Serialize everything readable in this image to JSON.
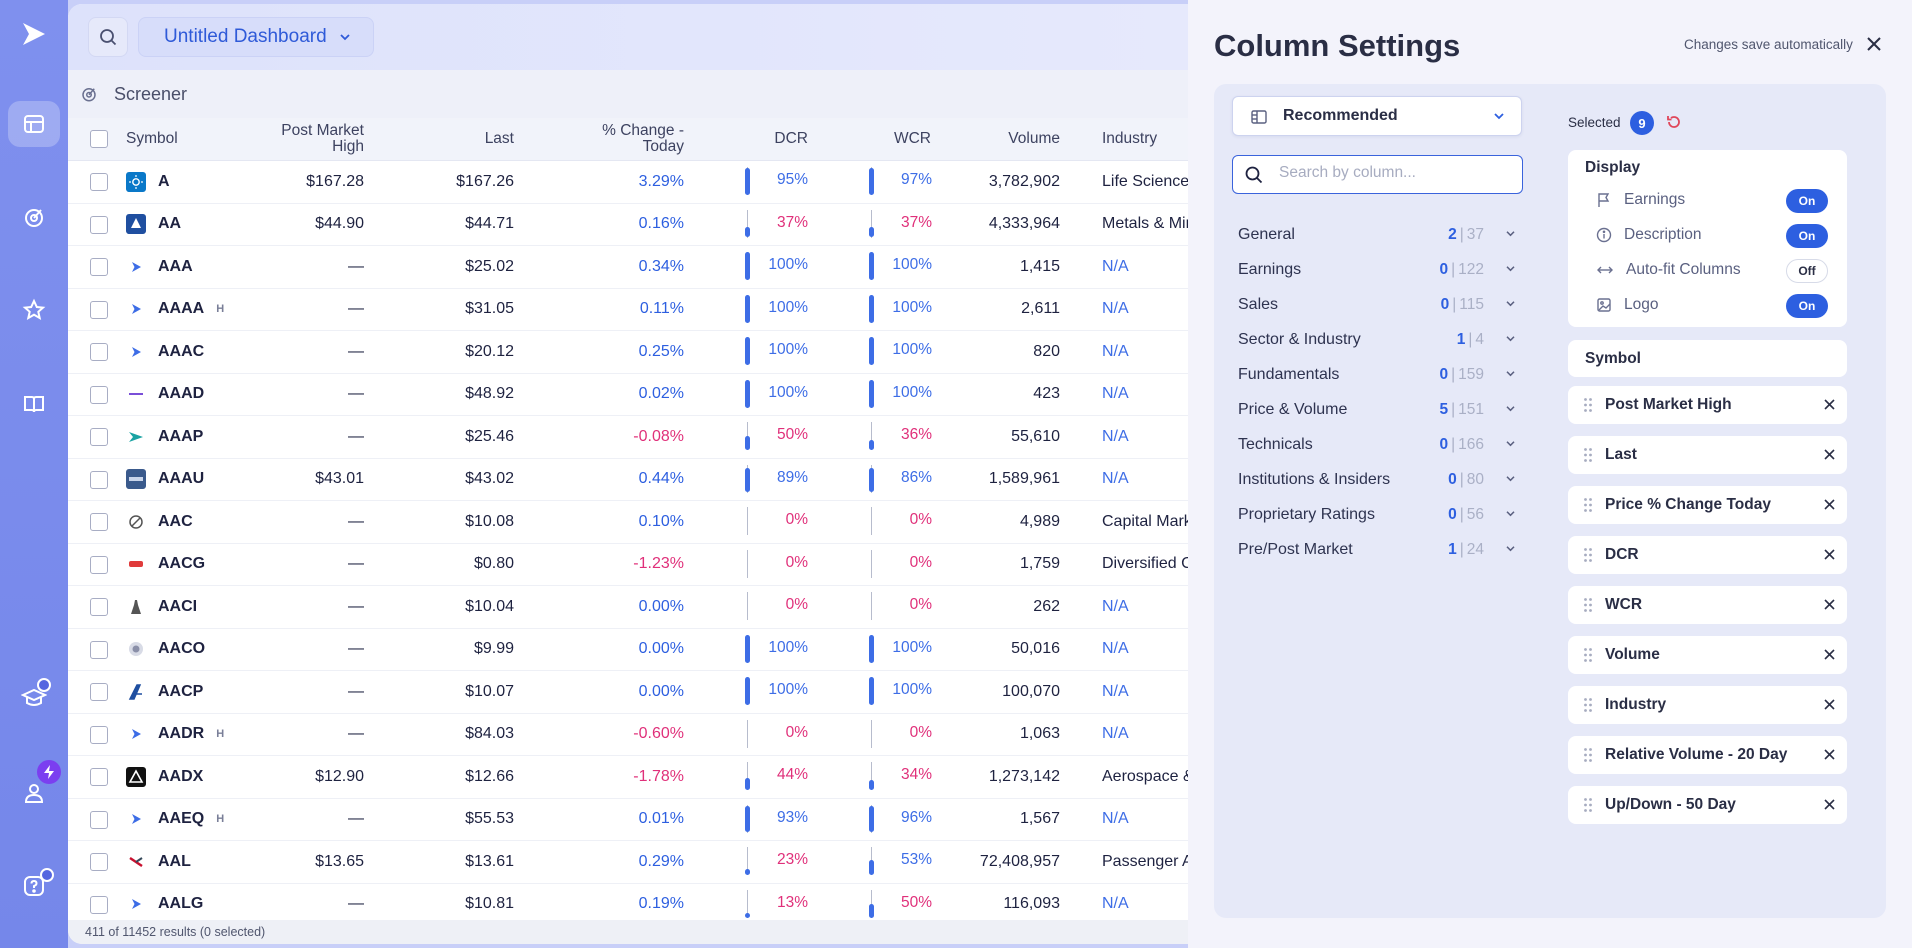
{
  "app": {
    "title": "Untitled Dashboard",
    "section": "Screener",
    "footer": "411 of 11452 results (0 selected)"
  },
  "colors": {
    "accent": "#2d5fe0",
    "positive": "#2d5fe0",
    "negative": "#e0307a",
    "rail": "#7f90ee"
  },
  "rail_icons": [
    "logo-icon",
    "dashboard-icon",
    "screener-icon",
    "watchlist-star-icon",
    "book-icon",
    "academy-cap-icon",
    "account-user-icon",
    "help-icon"
  ],
  "table": {
    "headers": {
      "symbol": "Symbol",
      "pmh_line1": "Post Market",
      "pmh_line2": "High",
      "last": "Last",
      "pct_line1": "% Change -",
      "pct_line2": "Today",
      "dcr": "DCR",
      "wcr": "WCR",
      "volume": "Volume",
      "industry": "Industry"
    },
    "rows": [
      {
        "logo": "sun",
        "sym": "A",
        "h": "",
        "pmh": "$167.28",
        "last": "$167.26",
        "pct": "3.29%",
        "dir": "pos",
        "dcr": "95%",
        "dcr_v": 95,
        "dcr_dir": "pos",
        "wcr": "97%",
        "wcr_v": 97,
        "wcr_dir": "pos",
        "vol": "3,782,902",
        "ind": "Life Sciences..."
      },
      {
        "logo": "alcoa",
        "sym": "AA",
        "h": "",
        "pmh": "$44.90",
        "last": "$44.71",
        "pct": "0.16%",
        "dir": "pos",
        "dcr": "37%",
        "dcr_v": 37,
        "dcr_dir": "neg",
        "wcr": "37%",
        "wcr_v": 37,
        "wcr_dir": "neg",
        "vol": "4,333,964",
        "ind": "Metals & Mini..."
      },
      {
        "logo": "play",
        "sym": "AAA",
        "h": "",
        "pmh": "—",
        "last": "$25.02",
        "pct": "0.34%",
        "dir": "pos",
        "dcr": "100%",
        "dcr_v": 100,
        "dcr_dir": "pos",
        "wcr": "100%",
        "wcr_v": 100,
        "wcr_dir": "pos",
        "vol": "1,415",
        "ind": "N/A"
      },
      {
        "logo": "play",
        "sym": "AAAA",
        "h": "H",
        "pmh": "—",
        "last": "$31.05",
        "pct": "0.11%",
        "dir": "pos",
        "dcr": "100%",
        "dcr_v": 100,
        "dcr_dir": "pos",
        "wcr": "100%",
        "wcr_v": 100,
        "wcr_dir": "pos",
        "vol": "2,611",
        "ind": "N/A"
      },
      {
        "logo": "play",
        "sym": "AAAC",
        "h": "",
        "pmh": "—",
        "last": "$20.12",
        "pct": "0.25%",
        "dir": "pos",
        "dcr": "100%",
        "dcr_v": 100,
        "dcr_dir": "pos",
        "wcr": "100%",
        "wcr_v": 100,
        "wcr_dir": "pos",
        "vol": "820",
        "ind": "N/A"
      },
      {
        "logo": "dash",
        "sym": "AAAD",
        "h": "",
        "pmh": "—",
        "last": "$48.92",
        "pct": "0.02%",
        "dir": "pos",
        "dcr": "100%",
        "dcr_v": 100,
        "dcr_dir": "pos",
        "wcr": "100%",
        "wcr_v": 100,
        "wcr_dir": "pos",
        "vol": "423",
        "ind": "N/A"
      },
      {
        "logo": "arrow",
        "sym": "AAAP",
        "h": "",
        "pmh": "—",
        "last": "$25.46",
        "pct": "-0.08%",
        "dir": "neg",
        "dcr": "50%",
        "dcr_v": 50,
        "dcr_dir": "neg",
        "wcr": "36%",
        "wcr_v": 36,
        "wcr_dir": "neg",
        "vol": "55,610",
        "ind": "N/A"
      },
      {
        "logo": "card",
        "sym": "AAAU",
        "h": "",
        "pmh": "$43.01",
        "last": "$43.02",
        "pct": "0.44%",
        "dir": "pos",
        "dcr": "89%",
        "dcr_v": 89,
        "dcr_dir": "pos",
        "wcr": "86%",
        "wcr_v": 86,
        "wcr_dir": "pos",
        "vol": "1,589,961",
        "ind": "N/A"
      },
      {
        "logo": "swirl",
        "sym": "AAC",
        "h": "",
        "pmh": "—",
        "last": "$10.08",
        "pct": "0.10%",
        "dir": "pos",
        "dcr": "0%",
        "dcr_v": 0,
        "dcr_dir": "neg",
        "wcr": "0%",
        "wcr_v": 0,
        "wcr_dir": "neg",
        "vol": "4,989",
        "ind": "Capital Mark..."
      },
      {
        "logo": "red",
        "sym": "AACG",
        "h": "",
        "pmh": "—",
        "last": "$0.80",
        "pct": "-1.23%",
        "dir": "neg",
        "dcr": "0%",
        "dcr_v": 0,
        "dcr_dir": "neg",
        "wcr": "0%",
        "wcr_v": 0,
        "wcr_dir": "neg",
        "vol": "1,759",
        "ind": "Diversified C..."
      },
      {
        "logo": "statue",
        "sym": "AACI",
        "h": "",
        "pmh": "—",
        "last": "$10.04",
        "pct": "0.00%",
        "dir": "pos",
        "dcr": "0%",
        "dcr_v": 0,
        "dcr_dir": "neg",
        "wcr": "0%",
        "wcr_v": 0,
        "wcr_dir": "neg",
        "vol": "262",
        "ind": "N/A"
      },
      {
        "logo": "seal",
        "sym": "AACO",
        "h": "",
        "pmh": "—",
        "last": "$9.99",
        "pct": "0.00%",
        "dir": "pos",
        "dcr": "100%",
        "dcr_v": 100,
        "dcr_dir": "pos",
        "wcr": "100%",
        "wcr_v": 100,
        "wcr_dir": "pos",
        "vol": "50,016",
        "ind": "N/A"
      },
      {
        "logo": "acp",
        "sym": "AACP",
        "h": "",
        "pmh": "—",
        "last": "$10.07",
        "pct": "0.00%",
        "dir": "pos",
        "dcr": "100%",
        "dcr_v": 100,
        "dcr_dir": "pos",
        "wcr": "100%",
        "wcr_v": 100,
        "wcr_dir": "pos",
        "vol": "100,070",
        "ind": "N/A"
      },
      {
        "logo": "play",
        "sym": "AADR",
        "h": "H",
        "pmh": "—",
        "last": "$84.03",
        "pct": "-0.60%",
        "dir": "neg",
        "dcr": "0%",
        "dcr_v": 0,
        "dcr_dir": "neg",
        "wcr": "0%",
        "wcr_v": 0,
        "wcr_dir": "neg",
        "vol": "1,063",
        "ind": "N/A"
      },
      {
        "logo": "adx",
        "sym": "AADX",
        "h": "",
        "pmh": "$12.90",
        "last": "$12.66",
        "pct": "-1.78%",
        "dir": "neg",
        "dcr": "44%",
        "dcr_v": 44,
        "dcr_dir": "neg",
        "wcr": "34%",
        "wcr_v": 34,
        "wcr_dir": "neg",
        "vol": "1,273,142",
        "ind": "Aerospace & ..."
      },
      {
        "logo": "play",
        "sym": "AAEQ",
        "h": "H",
        "pmh": "—",
        "last": "$55.53",
        "pct": "0.01%",
        "dir": "pos",
        "dcr": "93%",
        "dcr_v": 93,
        "dcr_dir": "pos",
        "wcr": "96%",
        "wcr_v": 96,
        "wcr_dir": "pos",
        "vol": "1,567",
        "ind": "N/A"
      },
      {
        "logo": "aal",
        "sym": "AAL",
        "h": "",
        "pmh": "$13.65",
        "last": "$13.61",
        "pct": "0.29%",
        "dir": "pos",
        "dcr": "23%",
        "dcr_v": 23,
        "dcr_dir": "neg",
        "wcr": "53%",
        "wcr_v": 53,
        "wcr_dir": "pos",
        "vol": "72,408,957",
        "ind": "Passenger Ai..."
      },
      {
        "logo": "play",
        "sym": "AALG",
        "h": "",
        "pmh": "—",
        "last": "$10.81",
        "pct": "0.19%",
        "dir": "pos",
        "dcr": "13%",
        "dcr_v": 13,
        "dcr_dir": "neg",
        "wcr": "50%",
        "wcr_v": 50,
        "wcr_dir": "neg",
        "vol": "116,093",
        "ind": "N/A"
      }
    ]
  },
  "settings": {
    "title": "Column Settings",
    "autosave": "Changes save automatically",
    "preset": "Recommended",
    "search_placeholder": "Search by column...",
    "categories": [
      {
        "name": "General",
        "sel": "2",
        "total": "37"
      },
      {
        "name": "Earnings",
        "sel": "0",
        "total": "122"
      },
      {
        "name": "Sales",
        "sel": "0",
        "total": "115"
      },
      {
        "name": "Sector & Industry",
        "sel": "1",
        "total": "4"
      },
      {
        "name": "Fundamentals",
        "sel": "0",
        "total": "159"
      },
      {
        "name": "Price & Volume",
        "sel": "5",
        "total": "151"
      },
      {
        "name": "Technicals",
        "sel": "0",
        "total": "166"
      },
      {
        "name": "Institutions & Insiders",
        "sel": "0",
        "total": "80"
      },
      {
        "name": "Proprietary Ratings",
        "sel": "0",
        "total": "56"
      },
      {
        "name": "Pre/Post Market",
        "sel": "1",
        "total": "24"
      }
    ],
    "selected_label": "Selected",
    "selected_count": "9",
    "display_title": "Display",
    "display": [
      {
        "label": "Earnings",
        "icon": "flag-icon",
        "state": "On"
      },
      {
        "label": "Description",
        "icon": "info-icon",
        "state": "On"
      },
      {
        "label": "Auto-fit Columns",
        "icon": "arrows-horizontal-icon",
        "state": "Off"
      },
      {
        "label": "Logo",
        "icon": "image-icon",
        "state": "On"
      }
    ],
    "fixed_column": "Symbol",
    "columns": [
      "Post Market High",
      "Last",
      "Price % Change Today",
      "DCR",
      "WCR",
      "Volume",
      "Industry",
      "Relative Volume - 20 Day",
      "Up/Down - 50 Day"
    ]
  }
}
